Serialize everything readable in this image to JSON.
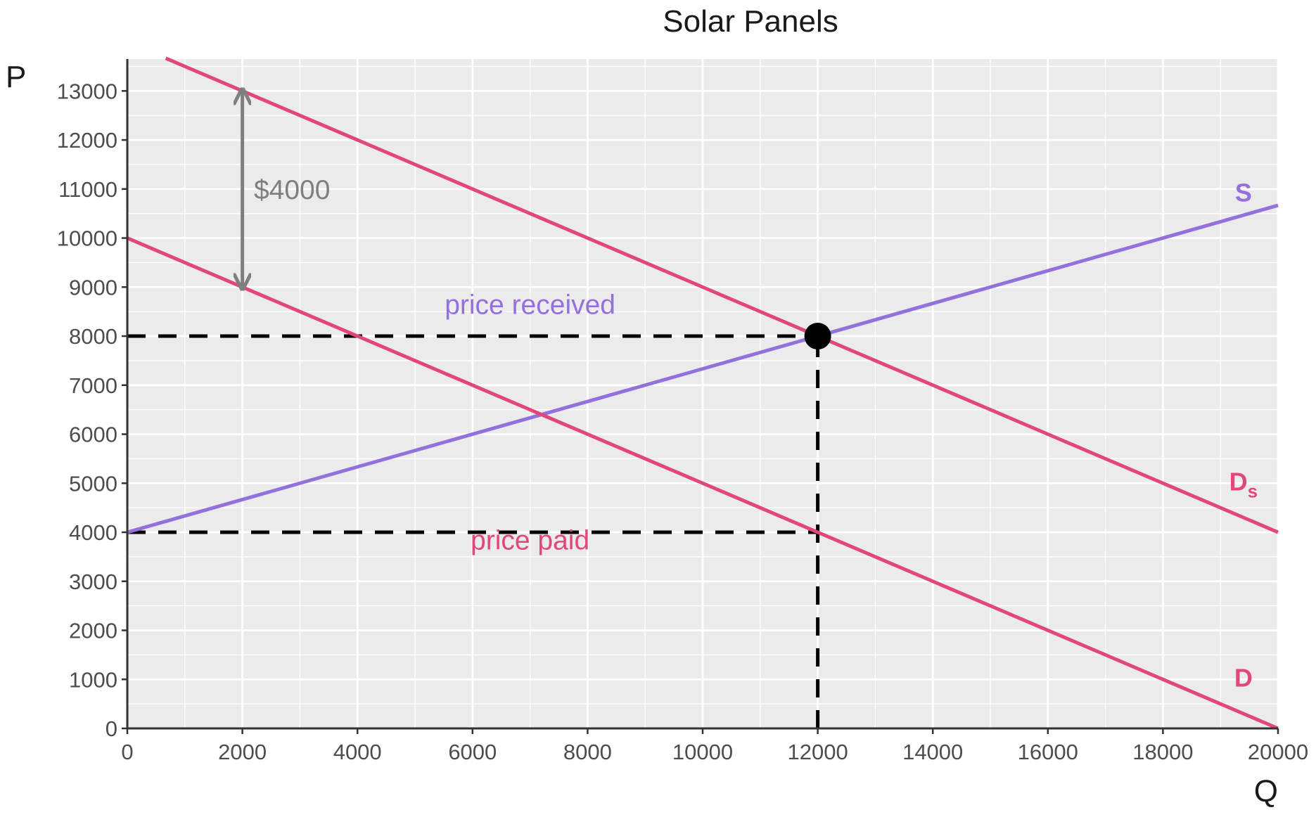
{
  "chart_data": {
    "type": "line",
    "title": "Solar Panels",
    "xlabel": "Q",
    "ylabel": "P",
    "xlim": [
      0,
      20000
    ],
    "ylim": [
      0,
      13650
    ],
    "x_ticks": [
      0,
      2000,
      4000,
      6000,
      8000,
      10000,
      12000,
      14000,
      16000,
      18000,
      20000
    ],
    "y_ticks": [
      0,
      1000,
      2000,
      3000,
      4000,
      5000,
      6000,
      7000,
      8000,
      9000,
      10000,
      11000,
      12000,
      13000
    ],
    "grid": true,
    "background": "#ebebeb",
    "series": [
      {
        "name": "S",
        "color": "#9370DB",
        "x": [
          0,
          20000
        ],
        "y": [
          4000,
          10667
        ]
      },
      {
        "name": "Ds",
        "color": "#E2477A",
        "x": [
          667,
          20000
        ],
        "y": [
          13667,
          4000
        ]
      },
      {
        "name": "D",
        "color": "#E2477A",
        "x": [
          0,
          20000
        ],
        "y": [
          10000,
          0
        ]
      }
    ],
    "curve_labels": [
      {
        "text": "S",
        "sub": "",
        "x": 19400,
        "y": 10750,
        "color": "#9370DB"
      },
      {
        "text": "D",
        "sub": "s",
        "x": 19400,
        "y": 4850,
        "color": "#E2477A"
      },
      {
        "text": "D",
        "sub": "",
        "x": 19400,
        "y": 850,
        "color": "#E2477A"
      }
    ],
    "reference_lines": [
      {
        "x": [
          0,
          12000
        ],
        "y": [
          8000,
          8000
        ]
      },
      {
        "x": [
          0,
          12000
        ],
        "y": [
          4000,
          4000
        ]
      },
      {
        "x": [
          12000,
          12000
        ],
        "y": [
          0,
          8000
        ]
      }
    ],
    "equilibrium_point": {
      "x": 12000,
      "y": 8000
    },
    "subsidy_arrow": {
      "x": 2000,
      "y": [
        9000,
        13000
      ],
      "color": "#7f7f7f"
    },
    "annotations": [
      {
        "text": "$4000",
        "x": 2200,
        "y": 10800,
        "anchor": "start",
        "color": "#7f7f7f"
      },
      {
        "text": "price received",
        "x": 7000,
        "y": 8450,
        "anchor": "middle",
        "color": "#9370DB"
      },
      {
        "text": "price paid",
        "x": 7000,
        "y": 3650,
        "anchor": "middle",
        "color": "#E2477A"
      }
    ]
  }
}
